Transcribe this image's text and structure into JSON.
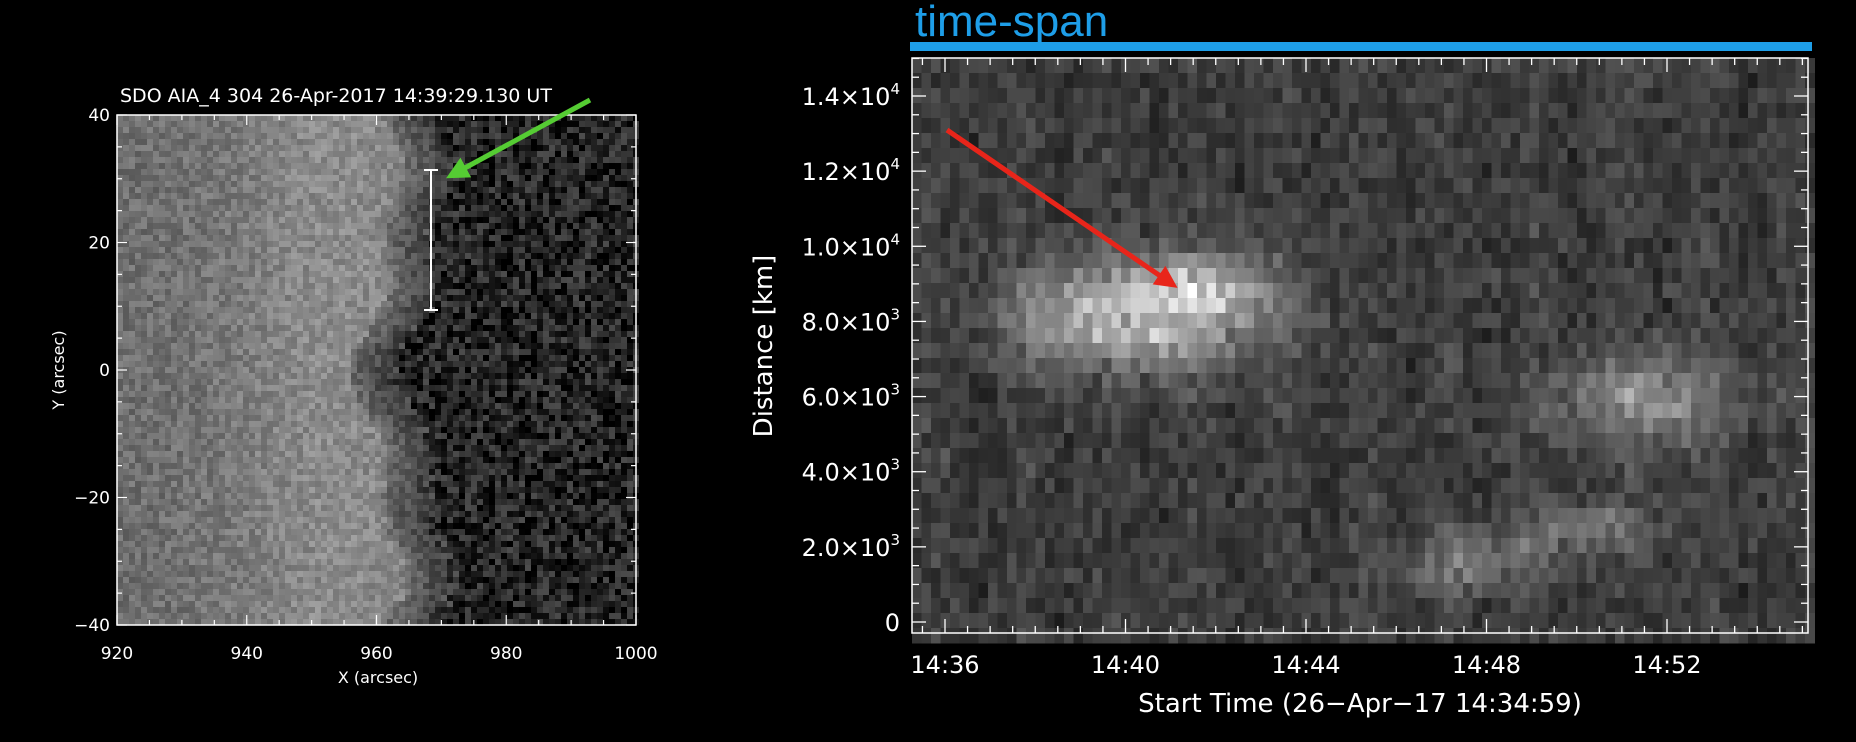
{
  "left_panel": {
    "title": "SDO AIA_4 304 26-Apr-2017 14:39:29.130 UT",
    "x_axis_label": "X (arcsec)",
    "y_axis_label": "Y (arcsec)",
    "x_ticks": [
      "920",
      "940",
      "960",
      "980",
      "1000"
    ],
    "y_ticks": [
      "40",
      "20",
      "0",
      "−20",
      "−40"
    ],
    "slit_x_arcsec": 968.5,
    "slit_y_range_arcsec": [
      10,
      32
    ],
    "arrow_color": "#55cc33"
  },
  "right_panel": {
    "header_label": "time-span",
    "header_color": "#1e9ee8",
    "x_axis_label": "Start Time (26−Apr−17 14:34:59)",
    "y_axis_label": "Distance [km]",
    "x_ticks": [
      "14:36",
      "14:40",
      "14:44",
      "14:48",
      "14:52"
    ],
    "y_ticks": [
      {
        "mant": "0",
        "exp": ""
      },
      {
        "mant": "2.0×10",
        "exp": "3"
      },
      {
        "mant": "4.0×10",
        "exp": "3"
      },
      {
        "mant": "6.0×10",
        "exp": "3"
      },
      {
        "mant": "8.0×10",
        "exp": "3"
      },
      {
        "mant": "1.0×10",
        "exp": "4"
      },
      {
        "mant": "1.2×10",
        "exp": "4"
      },
      {
        "mant": "1.4×10",
        "exp": "4"
      }
    ],
    "arrow_color": "#e8251a"
  }
}
